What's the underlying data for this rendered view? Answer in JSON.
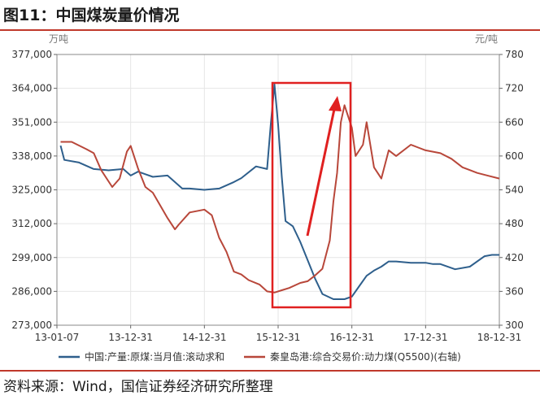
{
  "page": {
    "title": "图11：中国煤炭量价情况",
    "source": "资料来源：Wind，国信证券经济研究所整理"
  },
  "chart_data": {
    "type": "line",
    "left_unit": "万吨",
    "right_unit": "元/吨",
    "x_ticks": [
      "13-01-07",
      "13-12-31",
      "14-12-31",
      "15-12-31",
      "16-12-31",
      "17-12-31",
      "18-12-31"
    ],
    "y_left_ticks": [
      "273,000",
      "286,000",
      "299,000",
      "312,000",
      "325,000",
      "338,000",
      "351,000",
      "364,000",
      "377,000"
    ],
    "y_right_ticks": [
      "300",
      "360",
      "420",
      "480",
      "540",
      "600",
      "660",
      "720",
      "780"
    ],
    "ylim_left": [
      273000,
      377000
    ],
    "ylim_right": [
      300,
      780
    ],
    "xlim": [
      0,
      6
    ],
    "grid": true,
    "legend_position": "bottom",
    "colors": {
      "series1": "#2e5f8c",
      "series2": "#b8473a",
      "highlight": "#e02020"
    },
    "series": [
      {
        "name": "中国:产量:原煤:当月值:滚动求和",
        "axis": "left",
        "x": [
          0.05,
          0.1,
          0.3,
          0.5,
          0.7,
          0.9,
          1.0,
          1.1,
          1.2,
          1.3,
          1.5,
          1.7,
          1.8,
          2.0,
          2.2,
          2.4,
          2.5,
          2.7,
          2.85,
          2.9,
          2.95,
          3.0,
          3.05,
          3.1,
          3.2,
          3.3,
          3.4,
          3.5,
          3.6,
          3.75,
          3.9,
          4.0,
          4.1,
          4.2,
          4.3,
          4.4,
          4.5,
          4.6,
          4.8,
          5.0,
          5.1,
          5.2,
          5.4,
          5.6,
          5.8,
          5.9,
          6.0
        ],
        "y": [
          342000,
          336500,
          335500,
          333000,
          332500,
          333000,
          330500,
          332000,
          331000,
          330000,
          330500,
          325500,
          325500,
          325000,
          325500,
          328000,
          329500,
          334000,
          333000,
          350000,
          365500,
          350000,
          330000,
          313000,
          311000,
          305000,
          298000,
          291000,
          285000,
          283000,
          283000,
          284000,
          288000,
          292000,
          294000,
          295500,
          297500,
          297500,
          297000,
          297000,
          296500,
          296500,
          294500,
          295500,
          299500,
          300000,
          300000
        ]
      },
      {
        "name": "秦皇岛港:综合交易价:动力煤(Q5500)(右轴)",
        "axis": "right",
        "x": [
          0.05,
          0.2,
          0.4,
          0.5,
          0.6,
          0.75,
          0.85,
          0.95,
          1.0,
          1.1,
          1.2,
          1.3,
          1.5,
          1.6,
          1.65,
          1.8,
          2.0,
          2.1,
          2.2,
          2.3,
          2.4,
          2.5,
          2.6,
          2.75,
          2.85,
          2.95,
          3.05,
          3.15,
          3.3,
          3.4,
          3.5,
          3.6,
          3.7,
          3.75,
          3.8,
          3.85,
          3.9,
          4.0,
          4.05,
          4.15,
          4.2,
          4.3,
          4.4,
          4.5,
          4.6,
          4.8,
          4.9,
          5.0,
          5.2,
          5.35,
          5.5,
          5.6,
          5.7,
          5.85,
          6.0
        ],
        "y": [
          625,
          625,
          612,
          605,
          575,
          545,
          560,
          608,
          618,
          578,
          545,
          535,
          490,
          470,
          478,
          500,
          505,
          495,
          455,
          430,
          395,
          390,
          380,
          372,
          360,
          358,
          362,
          366,
          375,
          378,
          388,
          400,
          450,
          520,
          570,
          660,
          690,
          650,
          600,
          620,
          660,
          580,
          560,
          610,
          600,
          620,
          615,
          610,
          605,
          595,
          580,
          575,
          570,
          565,
          560
        ]
      }
    ],
    "annotations": {
      "highlight_box": true,
      "arrow": true
    }
  }
}
